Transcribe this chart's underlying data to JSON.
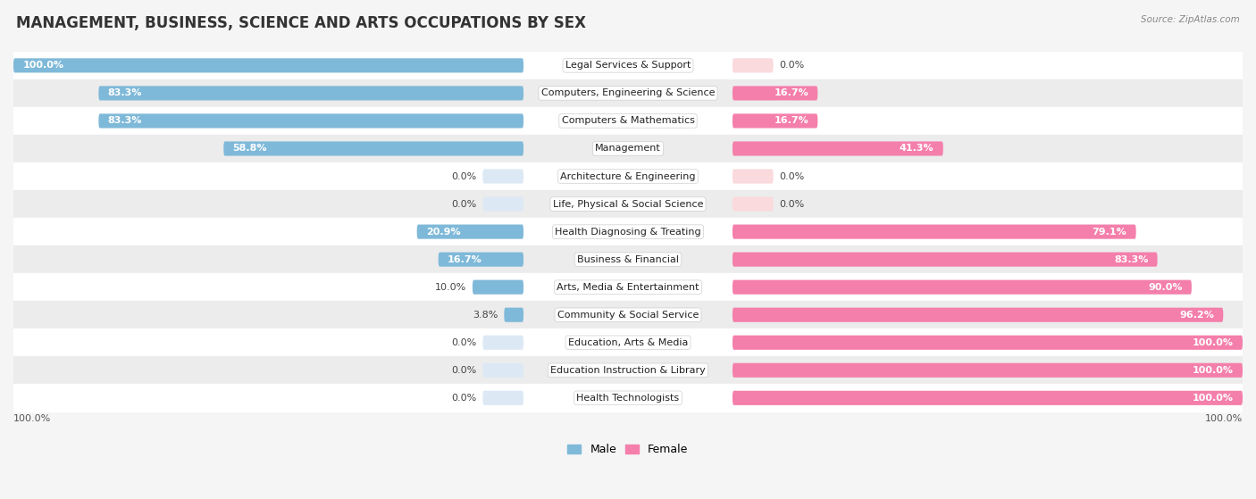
{
  "title": "MANAGEMENT, BUSINESS, SCIENCE AND ARTS OCCUPATIONS BY SEX",
  "source": "Source: ZipAtlas.com",
  "categories": [
    "Legal Services & Support",
    "Computers, Engineering & Science",
    "Computers & Mathematics",
    "Management",
    "Architecture & Engineering",
    "Life, Physical & Social Science",
    "Health Diagnosing & Treating",
    "Business & Financial",
    "Arts, Media & Entertainment",
    "Community & Social Service",
    "Education, Arts & Media",
    "Education Instruction & Library",
    "Health Technologists"
  ],
  "male": [
    100.0,
    83.3,
    83.3,
    58.8,
    0.0,
    0.0,
    20.9,
    16.7,
    10.0,
    3.8,
    0.0,
    0.0,
    0.0
  ],
  "female": [
    0.0,
    16.7,
    16.7,
    41.3,
    0.0,
    0.0,
    79.1,
    83.3,
    90.0,
    96.2,
    100.0,
    100.0,
    100.0
  ],
  "male_color": "#7fb9d9",
  "female_color": "#f47faa",
  "zero_bar_color": "#dce9f5",
  "zero_bar_color_f": "#fadadd",
  "bg_color": "#f5f5f5",
  "row_bg_colors": [
    "#ffffff",
    "#ececec"
  ],
  "title_fontsize": 12,
  "bar_label_fontsize": 8,
  "cat_label_fontsize": 8,
  "bar_height": 0.52,
  "zero_bar_width": 8.0,
  "legend_male_color": "#7fb9d9",
  "legend_female_color": "#f47faa"
}
